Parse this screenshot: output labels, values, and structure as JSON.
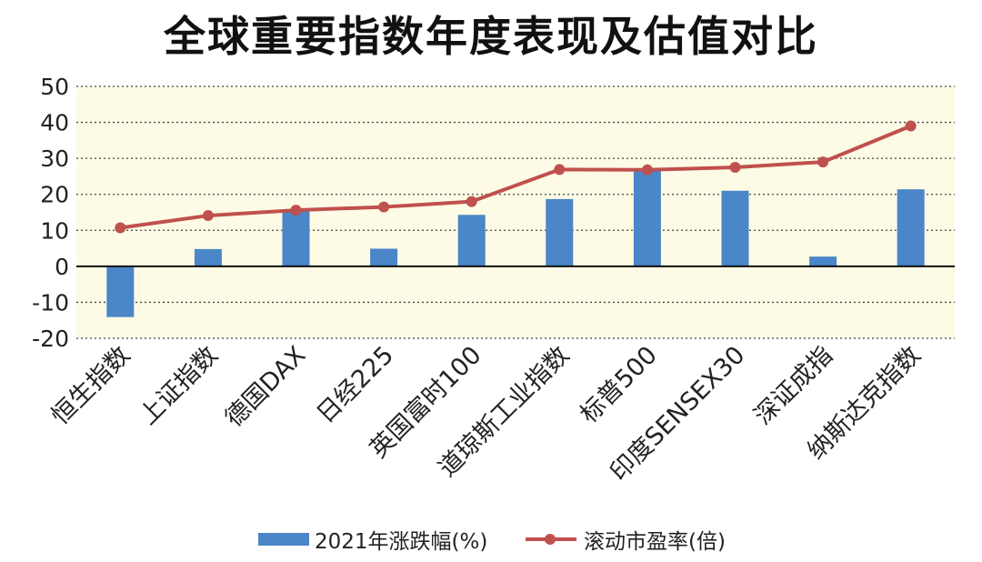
{
  "title": "全球重要指数年度表现及估值对比",
  "chart_data": {
    "type": "bar+line",
    "categories": [
      "恒生指数",
      "上证指数",
      "德国DAX",
      "日经225",
      "英国富时100",
      "道琼斯工业指数",
      "标普500",
      "印度SENSEX30",
      "深证成指",
      "纳斯达克指数"
    ],
    "series": [
      {
        "name": "2021年涨跌幅(%)",
        "type": "bar",
        "color": "#4a86c8",
        "values": [
          -14.1,
          4.8,
          15.8,
          4.9,
          14.3,
          18.7,
          26.9,
          21.0,
          2.7,
          21.4
        ]
      },
      {
        "name": "滚动市盈率(倍)",
        "type": "line",
        "color": "#c0504d",
        "values": [
          10.7,
          14.1,
          15.6,
          16.5,
          18.0,
          26.9,
          26.8,
          27.5,
          29.0,
          39.0
        ]
      }
    ],
    "yticks": [
      "50",
      "40",
      "30",
      "20",
      "10",
      "0",
      "-10",
      "-20"
    ],
    "ylim": [
      -20,
      50
    ],
    "grid": true,
    "background": "#fdfbe6"
  },
  "legend": {
    "bar_label": "2021年涨跌幅(%)",
    "line_label": "滚动市盈率(倍)"
  }
}
